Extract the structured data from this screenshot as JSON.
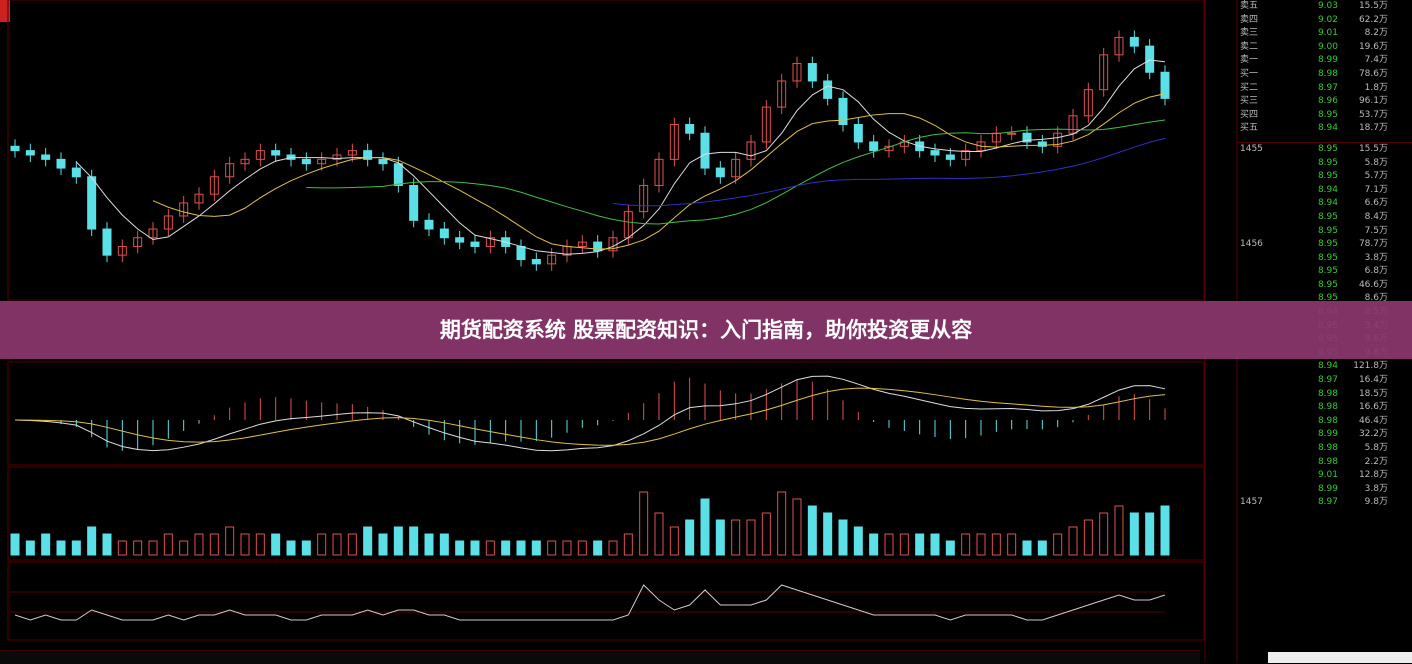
{
  "banner": {
    "title": "期货配资系统 股票配资知识：入门指南，助你投资更从容"
  },
  "colors": {
    "up": "#e05050",
    "down": "#5ce0e8",
    "ma5": "#dddddd",
    "ma10": "#e0c040",
    "ma20": "#40c040",
    "ma60": "#3030c0",
    "banner": "#8c376e",
    "grid": "#5a0000"
  },
  "chart_data": {
    "type": "candlestick",
    "close": [
      9.1,
      9.05,
      9.0,
      8.9,
      8.8,
      8.2,
      7.9,
      8.0,
      8.1,
      8.2,
      8.35,
      8.5,
      8.6,
      8.8,
      8.95,
      9.0,
      9.1,
      9.05,
      9.0,
      8.95,
      9.0,
      9.05,
      9.1,
      9.0,
      8.95,
      8.7,
      8.3,
      8.2,
      8.1,
      8.05,
      8.0,
      8.1,
      8.0,
      7.85,
      7.8,
      7.9,
      8.0,
      8.05,
      7.95,
      8.1,
      8.4,
      8.7,
      9.0,
      9.4,
      9.3,
      8.9,
      8.8,
      9.0,
      9.2,
      9.6,
      9.9,
      10.1,
      9.9,
      9.7,
      9.4,
      9.2,
      9.1,
      9.15,
      9.2,
      9.1,
      9.05,
      9.0,
      9.1,
      9.2,
      9.3,
      9.3,
      9.2,
      9.15,
      9.3,
      9.5,
      9.8,
      10.2,
      10.4,
      10.3,
      10.0,
      9.7
    ],
    "volume": [
      3,
      2,
      3,
      2,
      2,
      4,
      3,
      2,
      2,
      2,
      3,
      2,
      3,
      3,
      4,
      3,
      3,
      3,
      2,
      2,
      3,
      3,
      3,
      4,
      3,
      4,
      4,
      3,
      3,
      2,
      2,
      2,
      2,
      2,
      2,
      2,
      2,
      2,
      2,
      2,
      3,
      9,
      6,
      4,
      5,
      8,
      5,
      5,
      5,
      6,
      9,
      8,
      7,
      6,
      5,
      4,
      3,
      3,
      3,
      3,
      3,
      2,
      3,
      3,
      3,
      3,
      2,
      2,
      3,
      4,
      5,
      6,
      7,
      6,
      6,
      7
    ]
  },
  "order_book": [
    {
      "label": "卖五",
      "price": "9.03",
      "size": "15.5万"
    },
    {
      "label": "卖四",
      "price": "9.02",
      "size": "62.2万"
    },
    {
      "label": "卖三",
      "price": "9.01",
      "size": "8.2万"
    },
    {
      "label": "卖二",
      "price": "9.00",
      "size": "19.6万"
    },
    {
      "label": "卖一",
      "price": "8.99",
      "size": "7.4万"
    },
    {
      "label": "买一",
      "price": "8.98",
      "size": "78.6万"
    },
    {
      "label": "买二",
      "price": "8.97",
      "size": "1.8万"
    },
    {
      "label": "买三",
      "price": "8.96",
      "size": "96.1万"
    },
    {
      "label": "买四",
      "price": "8.95",
      "size": "53.7万"
    },
    {
      "label": "买五",
      "price": "8.94",
      "size": "18.7万"
    }
  ],
  "ticks": [
    {
      "time": "1455",
      "price": "8.95",
      "vol": "15.5万"
    },
    {
      "time": "",
      "price": "8.95",
      "vol": "5.8万"
    },
    {
      "time": "",
      "price": "8.95",
      "vol": "5.7万"
    },
    {
      "time": "",
      "price": "8.94",
      "vol": "7.1万"
    },
    {
      "time": "",
      "price": "8.94",
      "vol": "6.6万"
    },
    {
      "time": "",
      "price": "8.95",
      "vol": "8.4万"
    },
    {
      "time": "",
      "price": "8.95",
      "vol": "7.5万"
    },
    {
      "time": "1456",
      "price": "8.95",
      "vol": "78.7万"
    },
    {
      "time": "",
      "price": "8.95",
      "vol": "3.8万"
    },
    {
      "time": "",
      "price": "8.95",
      "vol": "6.8万"
    },
    {
      "time": "",
      "price": "8.95",
      "vol": "46.6万"
    },
    {
      "time": "",
      "price": "8.95",
      "vol": "8.6万"
    },
    {
      "time": "",
      "price": "8.94",
      "vol": "8.5万"
    },
    {
      "time": "",
      "price": "8.95",
      "vol": "3.4万"
    },
    {
      "time": "",
      "price": "8.95",
      "vol": "8.6万"
    },
    {
      "time": "",
      "price": "8.95",
      "vol": "9.8万"
    },
    {
      "time": "",
      "price": "8.94",
      "vol": "121.8万"
    },
    {
      "time": "",
      "price": "8.97",
      "vol": "16.4万"
    },
    {
      "time": "",
      "price": "8.98",
      "vol": "18.5万"
    },
    {
      "time": "",
      "price": "8.98",
      "vol": "16.6万"
    },
    {
      "time": "",
      "price": "8.98",
      "vol": "46.4万"
    },
    {
      "time": "",
      "price": "8.99",
      "vol": "32.2万"
    },
    {
      "time": "",
      "price": "8.98",
      "vol": "5.8万"
    },
    {
      "time": "",
      "price": "8.98",
      "vol": "2.2万"
    },
    {
      "time": "",
      "price": "9.01",
      "vol": "12.8万"
    },
    {
      "time": "",
      "price": "8.99",
      "vol": "3.8万"
    },
    {
      "time": "1457",
      "price": "8.97",
      "vol": "9.8万"
    }
  ]
}
